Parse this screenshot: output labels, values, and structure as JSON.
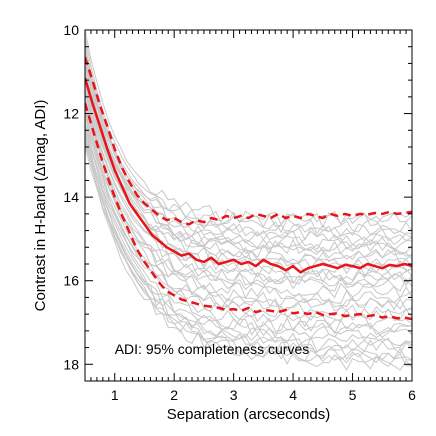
{
  "chart_data": {
    "type": "line",
    "xlabel": "Separation (arcseconds)",
    "ylabel": "Contrast in H-band (Δmag, ADI)",
    "annotation": "ADI: 95% completeness curves",
    "xlim": [
      0.5,
      6.0
    ],
    "ylim": [
      18.4,
      10.0
    ],
    "y_inverted": true,
    "x_ticks": [
      1,
      2,
      3,
      4,
      5,
      6
    ],
    "y_ticks": [
      10,
      12,
      14,
      16,
      18
    ],
    "grid": false,
    "colors": {
      "individual": "#c8c8c8",
      "median": "#e8141a",
      "axes": "#000000"
    },
    "x": [
      0.5,
      0.625,
      0.75,
      0.875,
      1.0,
      1.125,
      1.25,
      1.375,
      1.5,
      1.625,
      1.75,
      1.875,
      2.0,
      2.125,
      2.25,
      2.375,
      2.5,
      2.625,
      2.75,
      2.875,
      3.0,
      3.125,
      3.25,
      3.375,
      3.5,
      3.625,
      3.75,
      3.875,
      4.0,
      4.125,
      4.25,
      4.375,
      4.5,
      4.625,
      4.75,
      4.875,
      5.0,
      5.125,
      5.25,
      5.375,
      5.5,
      5.625,
      5.75,
      5.875,
      6.0
    ],
    "series": [
      {
        "style": "solid",
        "values": [
          11.15,
          11.75,
          12.3,
          12.85,
          13.35,
          13.75,
          14.15,
          14.4,
          14.65,
          14.9,
          15.05,
          15.2,
          15.3,
          15.4,
          15.35,
          15.5,
          15.55,
          15.45,
          15.6,
          15.55,
          15.5,
          15.6,
          15.55,
          15.65,
          15.5,
          15.6,
          15.65,
          15.75,
          15.65,
          15.8,
          15.7,
          15.65,
          15.6,
          15.65,
          15.7,
          15.62,
          15.65,
          15.7,
          15.6,
          15.65,
          15.7,
          15.62,
          15.65,
          15.6,
          15.65
        ]
      },
      {
        "style": "dashed",
        "values": [
          10.65,
          11.2,
          11.8,
          12.3,
          12.85,
          13.3,
          13.65,
          13.95,
          14.15,
          14.3,
          14.45,
          14.55,
          14.5,
          14.6,
          14.65,
          14.55,
          14.6,
          14.5,
          14.55,
          14.45,
          14.5,
          14.45,
          14.5,
          14.4,
          14.45,
          14.5,
          14.4,
          14.5,
          14.45,
          14.5,
          14.4,
          14.45,
          14.5,
          14.4,
          14.45,
          14.4,
          14.45,
          14.4,
          14.42,
          14.38,
          14.4,
          14.35,
          14.4,
          14.38,
          14.35
        ]
      },
      {
        "style": "dashed",
        "values": [
          11.75,
          12.35,
          12.95,
          13.5,
          14.0,
          14.45,
          14.85,
          15.25,
          15.55,
          15.8,
          16.05,
          16.25,
          16.35,
          16.45,
          16.5,
          16.55,
          16.6,
          16.62,
          16.65,
          16.7,
          16.68,
          16.72,
          16.65,
          16.75,
          16.7,
          16.72,
          16.75,
          16.7,
          16.78,
          16.75,
          16.8,
          16.75,
          16.82,
          16.8,
          16.78,
          16.85,
          16.82,
          16.8,
          16.85,
          16.82,
          16.88,
          16.85,
          16.9,
          16.88,
          16.92
        ]
      }
    ],
    "background_curves": [
      {
        "start": 10.0,
        "plateau": 14.5,
        "decay": 0.6
      },
      {
        "start": 10.2,
        "plateau": 14.7,
        "decay": 0.62
      },
      {
        "start": 10.4,
        "plateau": 14.9,
        "decay": 0.64
      },
      {
        "start": 10.5,
        "plateau": 15.0,
        "decay": 0.66
      },
      {
        "start": 10.6,
        "plateau": 15.1,
        "decay": 0.65
      },
      {
        "start": 10.7,
        "plateau": 15.25,
        "decay": 0.67
      },
      {
        "start": 10.8,
        "plateau": 15.35,
        "decay": 0.68
      },
      {
        "start": 10.9,
        "plateau": 15.45,
        "decay": 0.7
      },
      {
        "start": 11.0,
        "plateau": 15.55,
        "decay": 0.7
      },
      {
        "start": 11.1,
        "plateau": 15.65,
        "decay": 0.72
      },
      {
        "start": 11.2,
        "plateau": 15.75,
        "decay": 0.72
      },
      {
        "start": 11.3,
        "plateau": 15.85,
        "decay": 0.74
      },
      {
        "start": 11.4,
        "plateau": 15.95,
        "decay": 0.74
      },
      {
        "start": 11.5,
        "plateau": 16.1,
        "decay": 0.76
      },
      {
        "start": 11.6,
        "plateau": 16.25,
        "decay": 0.76
      },
      {
        "start": 11.7,
        "plateau": 16.4,
        "decay": 0.78
      },
      {
        "start": 11.8,
        "plateau": 16.55,
        "decay": 0.78
      },
      {
        "start": 11.9,
        "plateau": 16.7,
        "decay": 0.8
      },
      {
        "start": 12.0,
        "plateau": 16.85,
        "decay": 0.8
      },
      {
        "start": 12.1,
        "plateau": 17.0,
        "decay": 0.82
      },
      {
        "start": 12.2,
        "plateau": 17.15,
        "decay": 0.82
      },
      {
        "start": 12.3,
        "plateau": 17.3,
        "decay": 0.84
      },
      {
        "start": 12.4,
        "plateau": 17.45,
        "decay": 0.85
      },
      {
        "start": 12.5,
        "plateau": 17.6,
        "decay": 0.86
      },
      {
        "start": 12.6,
        "plateau": 17.75,
        "decay": 0.88
      },
      {
        "start": 12.7,
        "plateau": 17.9,
        "decay": 0.9
      },
      {
        "start": 12.8,
        "plateau": 18.0,
        "decay": 0.92
      },
      {
        "start": 11.0,
        "plateau": 15.2,
        "decay": 0.55
      },
      {
        "start": 11.3,
        "plateau": 16.0,
        "decay": 0.58
      },
      {
        "start": 11.6,
        "plateau": 16.6,
        "decay": 0.62
      },
      {
        "start": 12.0,
        "plateau": 17.2,
        "decay": 0.66
      },
      {
        "start": 10.3,
        "plateau": 14.55,
        "decay": 0.5
      },
      {
        "start": 10.6,
        "plateau": 14.8,
        "decay": 0.52
      },
      {
        "start": 12.2,
        "plateau": 17.55,
        "decay": 0.7
      },
      {
        "start": 12.5,
        "plateau": 17.8,
        "decay": 0.74
      }
    ]
  }
}
